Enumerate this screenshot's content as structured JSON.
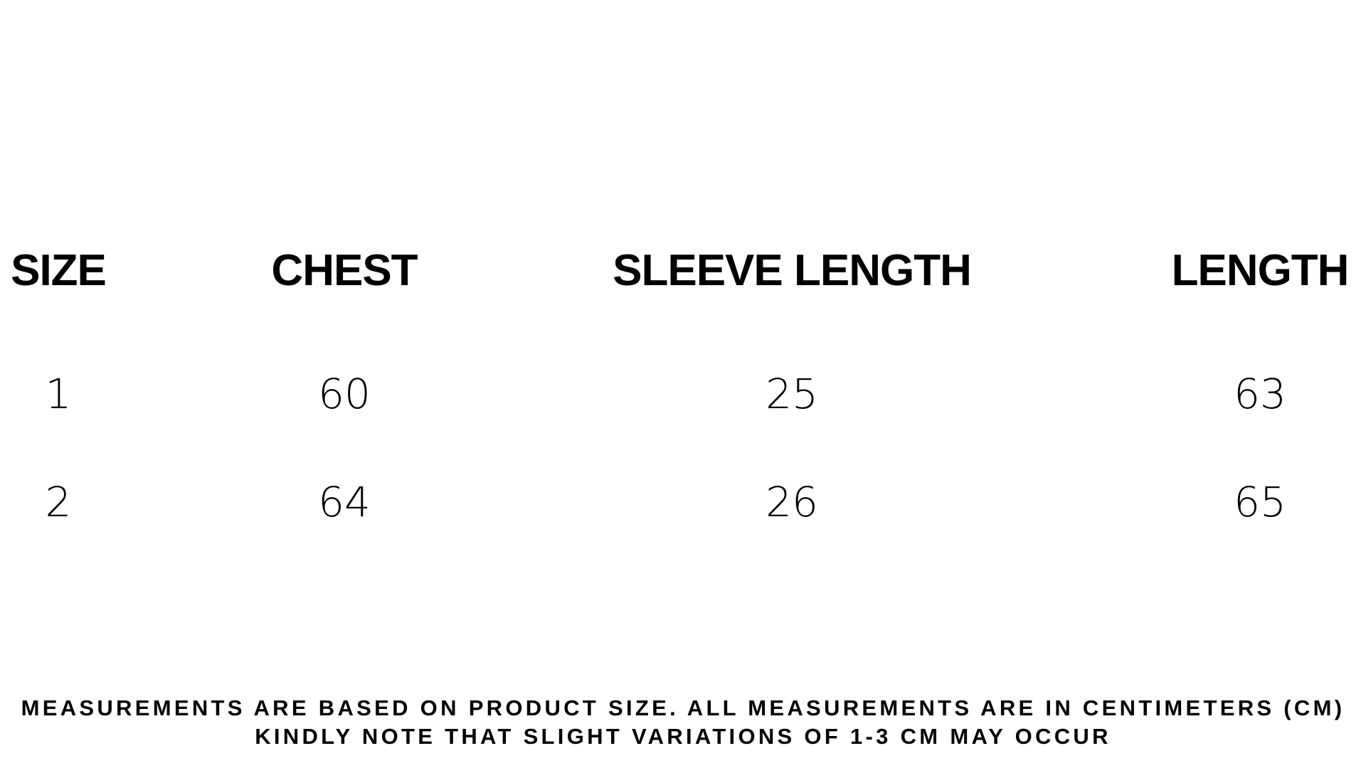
{
  "table": {
    "headers": [
      "SIZE",
      "CHEST",
      "SLEEVE LENGTH",
      "LENGTH"
    ],
    "rows": [
      [
        "1",
        "60",
        "25",
        "63"
      ],
      [
        "2",
        "64",
        "26",
        "65"
      ]
    ]
  },
  "notes": [
    "MEASUREMENTS ARE BASED ON PRODUCT SIZE. ALL MEASUREMENTS ARE IN CENTIMETERS (CM)",
    "KINDLY NOTE THAT SLIGHT VARIATIONS OF 1-3 CM MAY OCCUR"
  ]
}
